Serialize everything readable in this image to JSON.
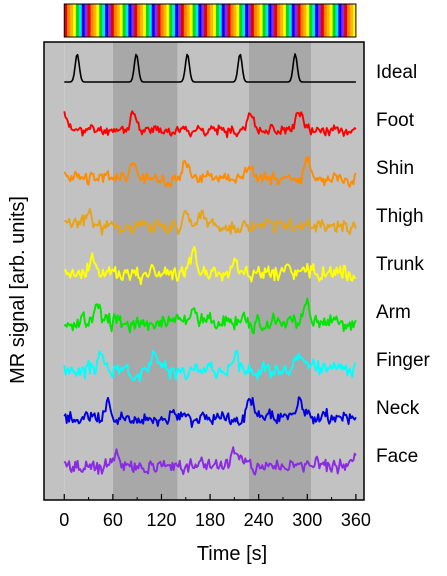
{
  "chart_data": {
    "type": "line",
    "xlabel": "Time [s]",
    "ylabel": "MR signal [arb. units]",
    "xlim": [
      -25,
      370
    ],
    "xticks": [
      0,
      60,
      120,
      180,
      240,
      300,
      360
    ],
    "grid": false,
    "stimulus_colors": [
      "#e60000",
      "#ff7f00",
      "#ffb400",
      "#ffff00",
      "#00dc00",
      "#00e6e6",
      "#0000ff",
      "#8a2be2"
    ],
    "stimulus_block_duration_s": 3.6,
    "shaded_intervals": [
      [
        0,
        60,
        "#c2c2c2"
      ],
      [
        60,
        140,
        "#a8a8a8"
      ],
      [
        140,
        228,
        "#c2c2c2"
      ],
      [
        228,
        305,
        "#a8a8a8"
      ],
      [
        305,
        370,
        "#c2c2c2"
      ]
    ],
    "series": [
      {
        "name": "Ideal",
        "color": "#000000",
        "peaks": [
          16,
          89,
          152,
          217,
          285
        ],
        "noise": 0
      },
      {
        "name": "Foot",
        "color": "#ff0000",
        "peaks": [
          0,
          85,
          230,
          290
        ],
        "noise": 0.55,
        "seed": 11
      },
      {
        "name": "Shin",
        "color": "#ff8c00",
        "peaks": [
          85,
          150,
          230,
          300
        ],
        "noise": 0.7,
        "seed": 23
      },
      {
        "name": "Thigh",
        "color": "#e8a317",
        "peaks": [
          30,
          150,
          170
        ],
        "noise": 0.8,
        "seed": 37
      },
      {
        "name": "Trunk",
        "color": "#ffff00",
        "peaks": [
          35,
          160,
          210
        ],
        "noise": 0.9,
        "seed": 41
      },
      {
        "name": "Arm",
        "color": "#00e600",
        "peaks": [
          40,
          160,
          300
        ],
        "noise": 0.9,
        "seed": 53
      },
      {
        "name": "Finger",
        "color": "#00ffff",
        "peaks": [
          45,
          110,
          210,
          290
        ],
        "noise": 0.8,
        "seed": 67
      },
      {
        "name": "Neck",
        "color": "#0000e0",
        "peaks": [
          55,
          230,
          290
        ],
        "noise": 0.75,
        "seed": 79
      },
      {
        "name": "Face",
        "color": "#8a2be2",
        "peaks": [
          65,
          210,
          360
        ],
        "noise": 0.8,
        "seed": 97
      }
    ]
  }
}
